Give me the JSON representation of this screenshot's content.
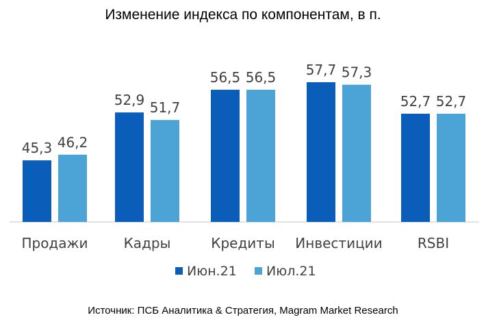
{
  "chart_data": {
    "type": "bar",
    "title": "Изменение индекса по компонентам, в п.",
    "categories": [
      "Продажи",
      "Кадры",
      "Кредиты",
      "Инвестиции",
      "RSBI"
    ],
    "series": [
      {
        "name": "Июн.21",
        "values": [
          45.3,
          52.9,
          56.5,
          57.7,
          52.7
        ],
        "color": "#0A5EB9"
      },
      {
        "name": "Июл.21",
        "values": [
          46.2,
          51.7,
          56.5,
          57.3,
          52.7
        ],
        "color": "#4BA3D6"
      }
    ],
    "value_labels": [
      [
        "45,3",
        "52,9",
        "56,5",
        "57,7",
        "52,7"
      ],
      [
        "46,2",
        "51,7",
        "56,5",
        "57,3",
        "52,7"
      ]
    ],
    "legend_position": "bottom",
    "grid": false,
    "source": "Источник: ПСБ Аналитика & Стратегия, Magram Market Research"
  }
}
